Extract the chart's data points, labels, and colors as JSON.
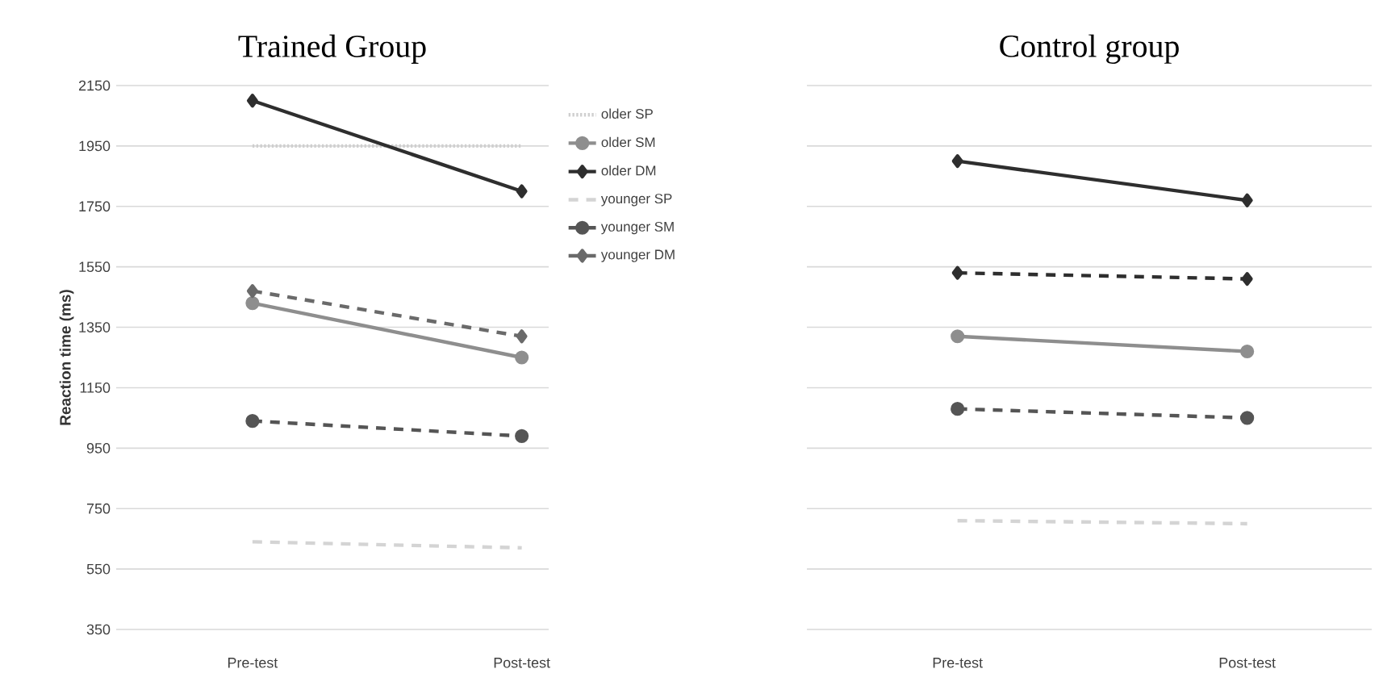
{
  "chart_data": [
    {
      "type": "line",
      "title": "Trained  Group",
      "ylabel": "Reaction time (ms)",
      "categories": [
        "Pre-test",
        "Post-test"
      ],
      "ylim": [
        350,
        2150
      ],
      "yticks": [
        350,
        550,
        750,
        950,
        1150,
        1350,
        1550,
        1750,
        1950,
        2150
      ],
      "grid": "y",
      "legend": "right",
      "series": [
        {
          "name": "older SP",
          "color": "#cfcfcf",
          "line_style": "dotted",
          "marker": "none",
          "values": [
            1950,
            1950
          ]
        },
        {
          "name": "older SM",
          "color": "#8e8e8e",
          "line_style": "solid",
          "marker": "circle",
          "values": [
            1430,
            1250
          ]
        },
        {
          "name": "older DM",
          "color": "#2e2e2e",
          "line_style": "solid",
          "marker": "diamond",
          "values": [
            2100,
            1800
          ]
        },
        {
          "name": "younger SP",
          "color": "#d4d4d4",
          "line_style": "dashed",
          "marker": "none",
          "values": [
            640,
            620
          ]
        },
        {
          "name": "younger SM",
          "color": "#555555",
          "line_style": "dashed",
          "marker": "circle",
          "values": [
            1040,
            990
          ]
        },
        {
          "name": "younger DM",
          "color": "#6a6a6a",
          "line_style": "dashed",
          "marker": "diamond",
          "values": [
            1470,
            1320
          ]
        }
      ]
    },
    {
      "type": "line",
      "title": "Control group",
      "categories": [
        "Pre-test",
        "Post-test"
      ],
      "ylim": [
        350,
        2150
      ],
      "yticks": [
        350,
        550,
        750,
        950,
        1150,
        1350,
        1550,
        1750,
        1950,
        2150
      ],
      "grid": "y",
      "tick_labels": "x",
      "series": [
        {
          "color": "#2e2e2e",
          "line_style": "solid",
          "marker": "diamond",
          "values": [
            1900,
            1770
          ]
        },
        {
          "color": "#2e2e2e",
          "line_style": "dashed",
          "marker": "diamond",
          "values": [
            1530,
            1510
          ]
        },
        {
          "color": "#8e8e8e",
          "line_style": "solid",
          "marker": "circle",
          "values": [
            1320,
            1270
          ]
        },
        {
          "color": "#555555",
          "line_style": "dashed",
          "marker": "circle",
          "values": [
            1080,
            1050
          ]
        },
        {
          "color": "#d4d4d4",
          "line_style": "dashed",
          "marker": "none",
          "values": [
            710,
            700
          ]
        }
      ]
    }
  ]
}
